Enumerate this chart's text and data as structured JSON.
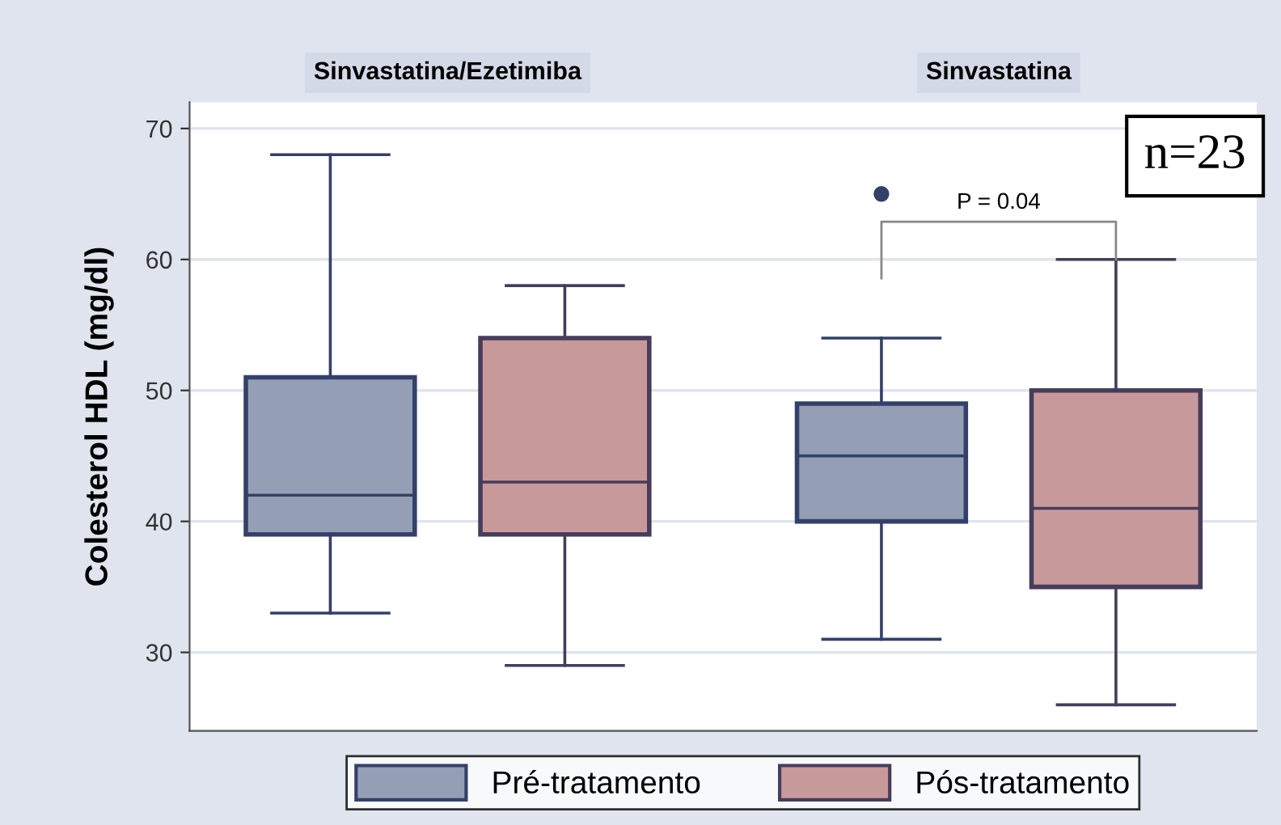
{
  "chart_data": {
    "type": "box",
    "ylabel": "Colesterol HDL (mg/dl)",
    "categories": [
      "Sinvastatina/Ezetimiba",
      "Sinvastatina"
    ],
    "ylim": [
      24,
      72
    ],
    "yticks": [
      30,
      40,
      50,
      60,
      70
    ],
    "grid": "y",
    "legend": "bottom",
    "annotations": [
      "n=23",
      "P = 0.04"
    ],
    "series": [
      {
        "name": "Pré-tratamento",
        "color": "#949fb5",
        "boxes": [
          {
            "low": 33,
            "q1": 39,
            "median": 42,
            "q3": 51,
            "high": 68
          },
          {
            "low": 31,
            "q1": 40,
            "median": 45,
            "q3": 49,
            "high": 54,
            "outliers": [
              65
            ]
          }
        ]
      },
      {
        "name": "Pós-tratamento",
        "color": "#c8999b",
        "boxes": [
          {
            "low": 29,
            "q1": 39,
            "median": 43,
            "q3": 54,
            "high": 58
          },
          {
            "low": 26,
            "q1": 35,
            "median": 41,
            "q3": 50,
            "high": 60
          }
        ]
      }
    ]
  }
}
